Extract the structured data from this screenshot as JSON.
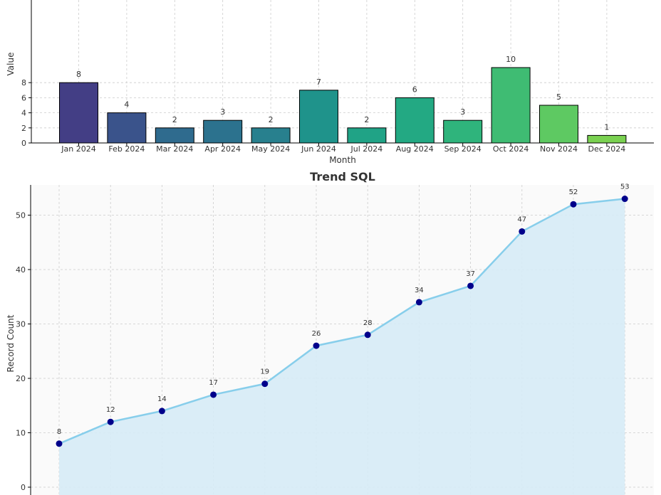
{
  "chart_data": [
    {
      "type": "bar",
      "title": "",
      "xlabel": "Month",
      "ylabel": "Value",
      "categories": [
        "Jan 2024",
        "Feb 2024",
        "Mar 2024",
        "Apr 2024",
        "May 2024",
        "Jun 2024",
        "Jul 2024",
        "Aug 2024",
        "Sep 2024",
        "Oct 2024",
        "Nov 2024",
        "Dec 2024"
      ],
      "values": [
        8,
        4,
        2,
        3,
        2,
        7,
        2,
        6,
        3,
        10,
        5,
        1
      ],
      "yticks": [
        0,
        2,
        4,
        6,
        8
      ],
      "colors": [
        "#433e85",
        "#3a538b",
        "#2f6b8e",
        "#2c728e",
        "#28808e",
        "#1f938b",
        "#20a386",
        "#23a983",
        "#2fb47c",
        "#3fbc73",
        "#5ec962",
        "#7ad151"
      ],
      "grid": true
    },
    {
      "type": "area",
      "title": "Trend SQL",
      "xlabel": "",
      "ylabel": "Record Count",
      "values": [
        8,
        12,
        14,
        17,
        19,
        26,
        28,
        34,
        37,
        47,
        52,
        53
      ],
      "yticks": [
        0,
        10,
        20,
        30,
        40,
        50
      ],
      "line_color": "#87ceeb",
      "fill_color": "#d6ebf6",
      "marker_color": "#00008b",
      "grid": true
    }
  ]
}
